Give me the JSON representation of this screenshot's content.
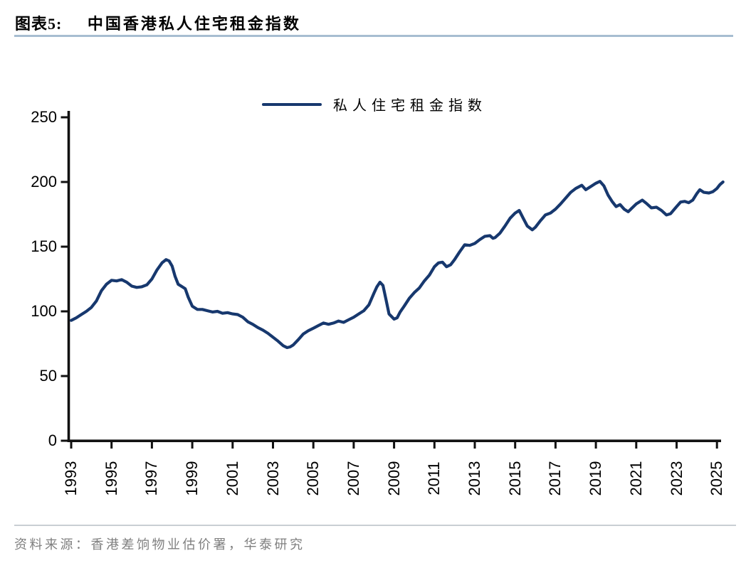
{
  "header": {
    "figure_label": "图表5:",
    "title": "中国香港私人住宅租金指数"
  },
  "legend": {
    "label": "私人住宅租金指数"
  },
  "footer": {
    "source": "资料来源：香港差饷物业估价署，华泰研究"
  },
  "colors": {
    "line": "#17386e",
    "header_rule": "#a7bdd1",
    "footer_rule": "#c9ced3",
    "source_text": "#7f7f7f",
    "axis": "#111111"
  },
  "chart_data": {
    "type": "line",
    "title": "中国香港私人住宅租金指数",
    "xlabel": "",
    "ylabel": "",
    "ylim": [
      0,
      250
    ],
    "y_ticks": [
      0,
      50,
      100,
      150,
      200,
      250
    ],
    "x_ticks": [
      1993,
      1995,
      1997,
      1999,
      2001,
      2003,
      2005,
      2007,
      2009,
      2011,
      2013,
      2015,
      2017,
      2019,
      2021,
      2023,
      2025
    ],
    "grid": false,
    "legend_position": "top-center",
    "series": [
      {
        "name": "私人住宅租金指数",
        "color": "#17386e",
        "points": [
          [
            1993.0,
            93
          ],
          [
            1993.25,
            95
          ],
          [
            1993.5,
            97.5
          ],
          [
            1993.75,
            100
          ],
          [
            1994.0,
            103
          ],
          [
            1994.25,
            108
          ],
          [
            1994.5,
            116
          ],
          [
            1994.75,
            121
          ],
          [
            1995.0,
            124
          ],
          [
            1995.25,
            123.5
          ],
          [
            1995.5,
            124.5
          ],
          [
            1995.75,
            122.5
          ],
          [
            1996.0,
            119.5
          ],
          [
            1996.25,
            118.5
          ],
          [
            1996.5,
            119
          ],
          [
            1996.75,
            120.5
          ],
          [
            1997.0,
            125
          ],
          [
            1997.25,
            132
          ],
          [
            1997.5,
            137.5
          ],
          [
            1997.7,
            140
          ],
          [
            1997.85,
            139
          ],
          [
            1998.0,
            135
          ],
          [
            1998.15,
            127
          ],
          [
            1998.3,
            121
          ],
          [
            1998.5,
            119
          ],
          [
            1998.65,
            117.5
          ],
          [
            1998.8,
            111
          ],
          [
            1999.0,
            104
          ],
          [
            1999.25,
            101.5
          ],
          [
            1999.5,
            101.5
          ],
          [
            1999.75,
            100.5
          ],
          [
            2000.0,
            99.5
          ],
          [
            2000.25,
            100
          ],
          [
            2000.5,
            98.5
          ],
          [
            2000.75,
            99
          ],
          [
            2001.0,
            98
          ],
          [
            2001.25,
            97.5
          ],
          [
            2001.5,
            95.5
          ],
          [
            2001.75,
            92
          ],
          [
            2002.0,
            90
          ],
          [
            2002.25,
            87.5
          ],
          [
            2002.5,
            85.5
          ],
          [
            2002.75,
            83
          ],
          [
            2003.0,
            80
          ],
          [
            2003.25,
            77
          ],
          [
            2003.5,
            73.5
          ],
          [
            2003.7,
            72
          ],
          [
            2003.85,
            72.5
          ],
          [
            2004.0,
            74
          ],
          [
            2004.25,
            78
          ],
          [
            2004.5,
            82.5
          ],
          [
            2004.75,
            85
          ],
          [
            2005.0,
            87
          ],
          [
            2005.25,
            89
          ],
          [
            2005.5,
            91
          ],
          [
            2005.75,
            90
          ],
          [
            2006.0,
            91
          ],
          [
            2006.25,
            92.5
          ],
          [
            2006.5,
            91.5
          ],
          [
            2006.75,
            93.5
          ],
          [
            2007.0,
            95.5
          ],
          [
            2007.25,
            98
          ],
          [
            2007.5,
            100.5
          ],
          [
            2007.75,
            105
          ],
          [
            2008.0,
            114
          ],
          [
            2008.15,
            119
          ],
          [
            2008.3,
            122.5
          ],
          [
            2008.45,
            120
          ],
          [
            2008.6,
            109
          ],
          [
            2008.75,
            98
          ],
          [
            2009.0,
            94
          ],
          [
            2009.15,
            95
          ],
          [
            2009.3,
            99.5
          ],
          [
            2009.5,
            104
          ],
          [
            2009.75,
            110
          ],
          [
            2010.0,
            114.5
          ],
          [
            2010.25,
            118
          ],
          [
            2010.5,
            123.5
          ],
          [
            2010.75,
            128
          ],
          [
            2011.0,
            134.5
          ],
          [
            2011.2,
            137.5
          ],
          [
            2011.4,
            138
          ],
          [
            2011.6,
            134.5
          ],
          [
            2011.8,
            136
          ],
          [
            2012.0,
            140
          ],
          [
            2012.25,
            146
          ],
          [
            2012.5,
            151.5
          ],
          [
            2012.75,
            151
          ],
          [
            2013.0,
            152.5
          ],
          [
            2013.25,
            155.5
          ],
          [
            2013.5,
            158
          ],
          [
            2013.75,
            158.5
          ],
          [
            2013.9,
            156.5
          ],
          [
            2014.0,
            157
          ],
          [
            2014.25,
            160.5
          ],
          [
            2014.5,
            166
          ],
          [
            2014.75,
            172
          ],
          [
            2015.0,
            176
          ],
          [
            2015.2,
            178
          ],
          [
            2015.4,
            172
          ],
          [
            2015.6,
            166
          ],
          [
            2015.85,
            163
          ],
          [
            2016.0,
            165
          ],
          [
            2016.25,
            170
          ],
          [
            2016.5,
            174.5
          ],
          [
            2016.75,
            176
          ],
          [
            2017.0,
            179
          ],
          [
            2017.25,
            183
          ],
          [
            2017.5,
            187.5
          ],
          [
            2017.75,
            192
          ],
          [
            2018.0,
            195
          ],
          [
            2018.3,
            197.5
          ],
          [
            2018.5,
            194
          ],
          [
            2018.75,
            196.5
          ],
          [
            2019.0,
            199
          ],
          [
            2019.2,
            200.5
          ],
          [
            2019.4,
            197
          ],
          [
            2019.6,
            190
          ],
          [
            2019.8,
            185
          ],
          [
            2020.0,
            181
          ],
          [
            2020.2,
            182.5
          ],
          [
            2020.4,
            179
          ],
          [
            2020.6,
            177
          ],
          [
            2020.8,
            180
          ],
          [
            2021.0,
            183
          ],
          [
            2021.3,
            186
          ],
          [
            2021.5,
            183.5
          ],
          [
            2021.75,
            180
          ],
          [
            2022.0,
            180.5
          ],
          [
            2022.25,
            178
          ],
          [
            2022.5,
            174.5
          ],
          [
            2022.7,
            175.5
          ],
          [
            2023.0,
            181
          ],
          [
            2023.2,
            184.5
          ],
          [
            2023.4,
            185
          ],
          [
            2023.6,
            184
          ],
          [
            2023.8,
            186
          ],
          [
            2024.0,
            191
          ],
          [
            2024.15,
            194
          ],
          [
            2024.35,
            192
          ],
          [
            2024.6,
            191.5
          ],
          [
            2024.8,
            192.5
          ],
          [
            2025.0,
            195
          ],
          [
            2025.15,
            198
          ],
          [
            2025.3,
            200
          ]
        ]
      }
    ]
  }
}
